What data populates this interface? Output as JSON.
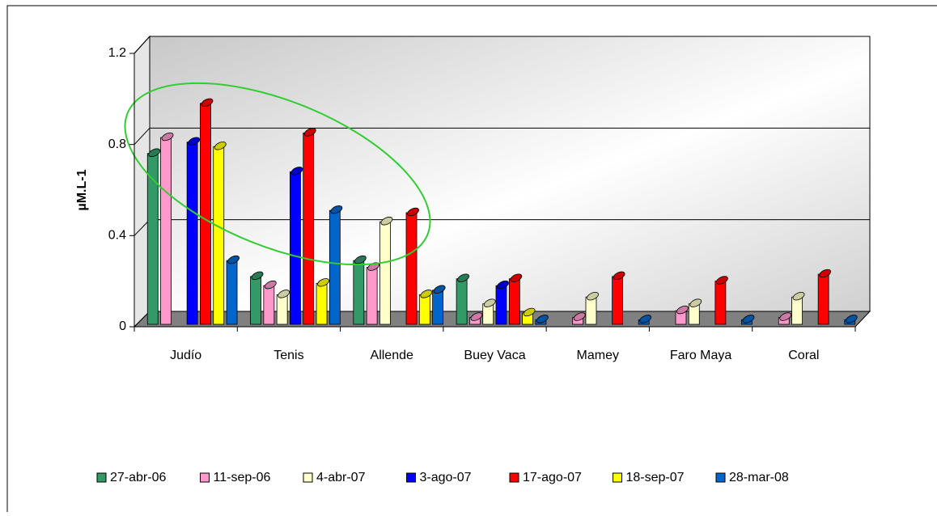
{
  "chart_data": {
    "type": "bar3d",
    "y_label": "µM.L-1",
    "categories": [
      "Judío",
      "Tenis",
      "Allende",
      "Buey Vaca",
      "Mamey",
      "Faro Maya",
      "Coral"
    ],
    "ylim": [
      0,
      1.2
    ],
    "yticks": [
      0,
      0.4,
      0.8,
      1.2
    ],
    "grid": true,
    "legend": "bottom",
    "series": [
      {
        "name": "27-abr-06",
        "color": "#339966",
        "values": [
          0.75,
          0.21,
          0.28,
          0.2,
          null,
          null,
          null
        ]
      },
      {
        "name": "11-sep-06",
        "color": "#ff99cc",
        "values": [
          0.82,
          0.17,
          0.25,
          0.03,
          0.03,
          0.06,
          0.03
        ]
      },
      {
        "name": "4-abr-07",
        "color": "#ffffcc",
        "values": [
          null,
          0.13,
          0.45,
          0.09,
          0.12,
          0.09,
          0.12
        ]
      },
      {
        "name": "3-ago-07",
        "color": "#0000ff",
        "values": [
          0.8,
          0.67,
          null,
          0.17,
          null,
          null,
          null
        ]
      },
      {
        "name": "17-ago-07",
        "color": "#ff0000",
        "values": [
          0.97,
          0.84,
          0.49,
          0.2,
          0.21,
          0.19,
          0.22
        ]
      },
      {
        "name": "18-sep-07",
        "color": "#ffff00",
        "values": [
          0.78,
          0.18,
          0.13,
          0.05,
          null,
          null,
          null
        ]
      },
      {
        "name": "28-mar-08",
        "color": "#0066cc",
        "values": [
          0.28,
          0.5,
          0.15,
          0.02,
          0.02,
          0.02,
          0.02
        ]
      }
    ]
  }
}
